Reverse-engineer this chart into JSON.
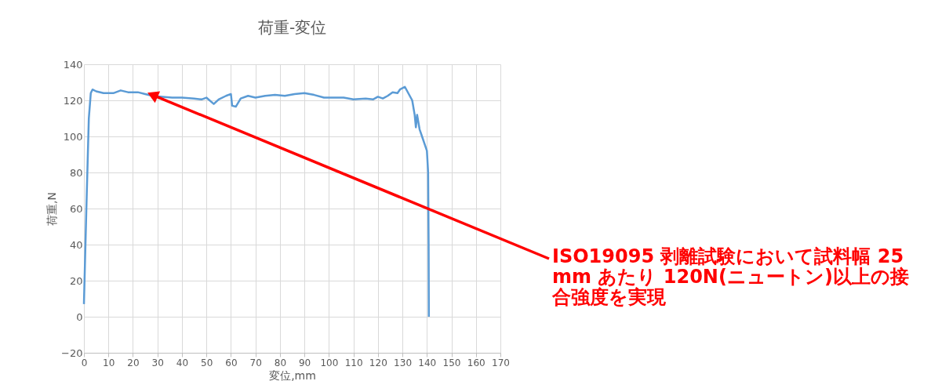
{
  "chart_data": {
    "type": "line",
    "title": "荷重-変位",
    "xlabel": "変位,mm",
    "ylabel": "荷重,N",
    "xlim": [
      0,
      170
    ],
    "xticks": [
      0,
      10,
      20,
      30,
      40,
      50,
      60,
      70,
      80,
      90,
      100,
      110,
      120,
      130,
      140,
      150,
      160,
      170
    ],
    "ylim": [
      -20,
      140
    ],
    "yticks": [
      -20,
      0,
      20,
      40,
      60,
      80,
      100,
      120,
      140
    ],
    "grid": true,
    "marker": "none",
    "line_style": "solid",
    "annotations": [
      {
        "text": "ISO19095 剥離試験において試料幅 25mm あたり 120N(ニュートン)以上の接合強度を実現",
        "x": 28,
        "y": 123
      }
    ],
    "series": [
      {
        "color": "#5b9bd5",
        "x": [
          0,
          1,
          2,
          2.8,
          3.5,
          5,
          8,
          12,
          15,
          18,
          22,
          25,
          28,
          32,
          36,
          40,
          45,
          48,
          50,
          53,
          55,
          58,
          60,
          60.5,
          62,
          64,
          67,
          70,
          74,
          78,
          82,
          86,
          90,
          94,
          98,
          102,
          106,
          110,
          115,
          118,
          120,
          122,
          124,
          126,
          128,
          129,
          131,
          132,
          134,
          135,
          135.5,
          136,
          137,
          138,
          139,
          140,
          140.5,
          140.7,
          140.8
        ],
        "values": [
          7,
          60,
          110,
          124,
          126,
          125,
          124,
          124,
          125.5,
          124.5,
          124.5,
          123.5,
          122.5,
          122,
          121.5,
          121.5,
          121,
          120.5,
          121.5,
          118,
          120.5,
          122.5,
          123.5,
          117,
          116.5,
          121,
          122.5,
          121.5,
          122.5,
          123,
          122.5,
          123.5,
          124,
          123,
          121.5,
          121.5,
          121.5,
          120.5,
          121,
          120.5,
          122,
          121,
          122.5,
          124.5,
          124,
          126,
          127.5,
          125,
          120,
          112,
          105,
          112,
          104,
          100,
          96,
          92,
          80,
          40,
          0
        ]
      }
    ]
  }
}
